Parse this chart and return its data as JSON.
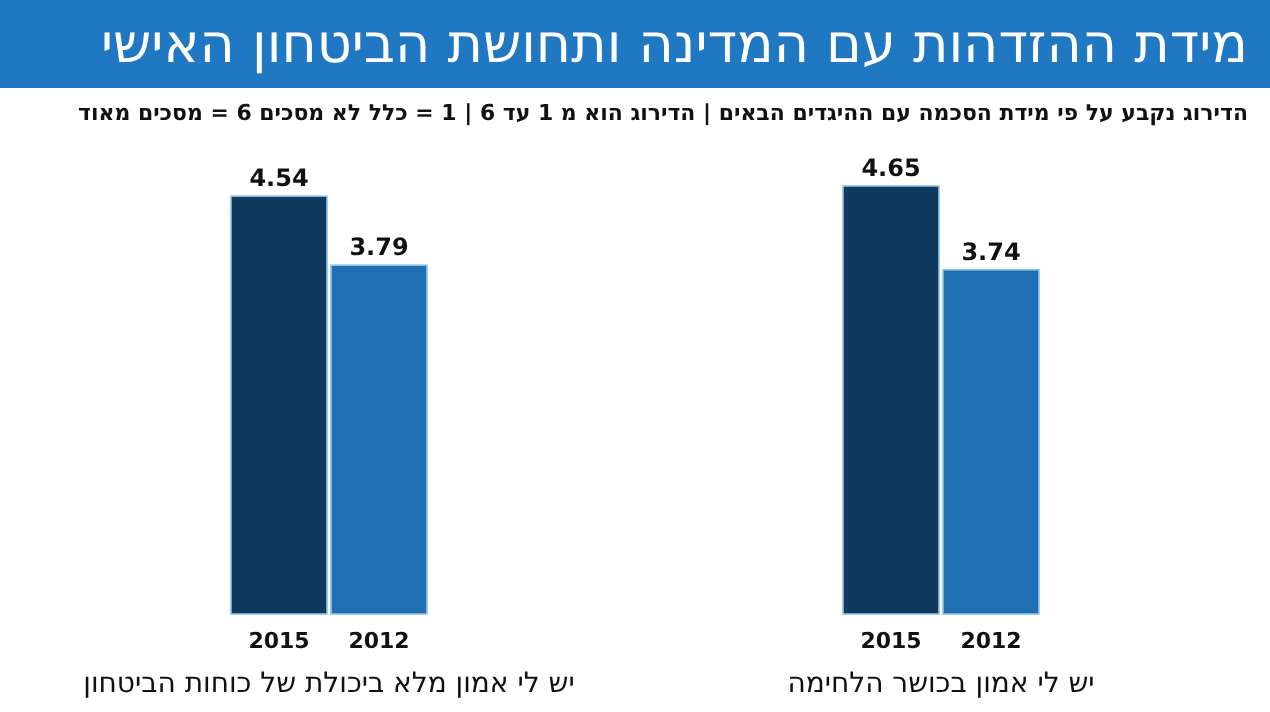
{
  "chart_data": [
    {
      "type": "bar",
      "title": "מידת ההזדהות עם המדינה ותחושת הביטחון האישי",
      "subtitle": "הדירוג נקבע על פי מידת הסכמה עם ההיגדים הבאים | הדירוג הוא מ 1 עד 6 | 1 = כלל לא מסכים   6 = מסכים מאוד",
      "categories": [
        "2015",
        "2012"
      ],
      "values": [
        4.65,
        3.74
      ],
      "colors": [
        "#0f3a5e",
        "#1f6fb2"
      ],
      "data_labels": true,
      "xlabel": "יש לי אמון בכושר הלחימה"
    },
    {
      "type": "bar",
      "categories": [
        "2015",
        "2012"
      ],
      "values": [
        4.54,
        3.79
      ],
      "colors": [
        "#0f3a5e",
        "#1f6fb2"
      ],
      "data_labels": true,
      "xlabel": "יש לי אמון מלא ביכולת של כוחות הביטחון"
    }
  ]
}
